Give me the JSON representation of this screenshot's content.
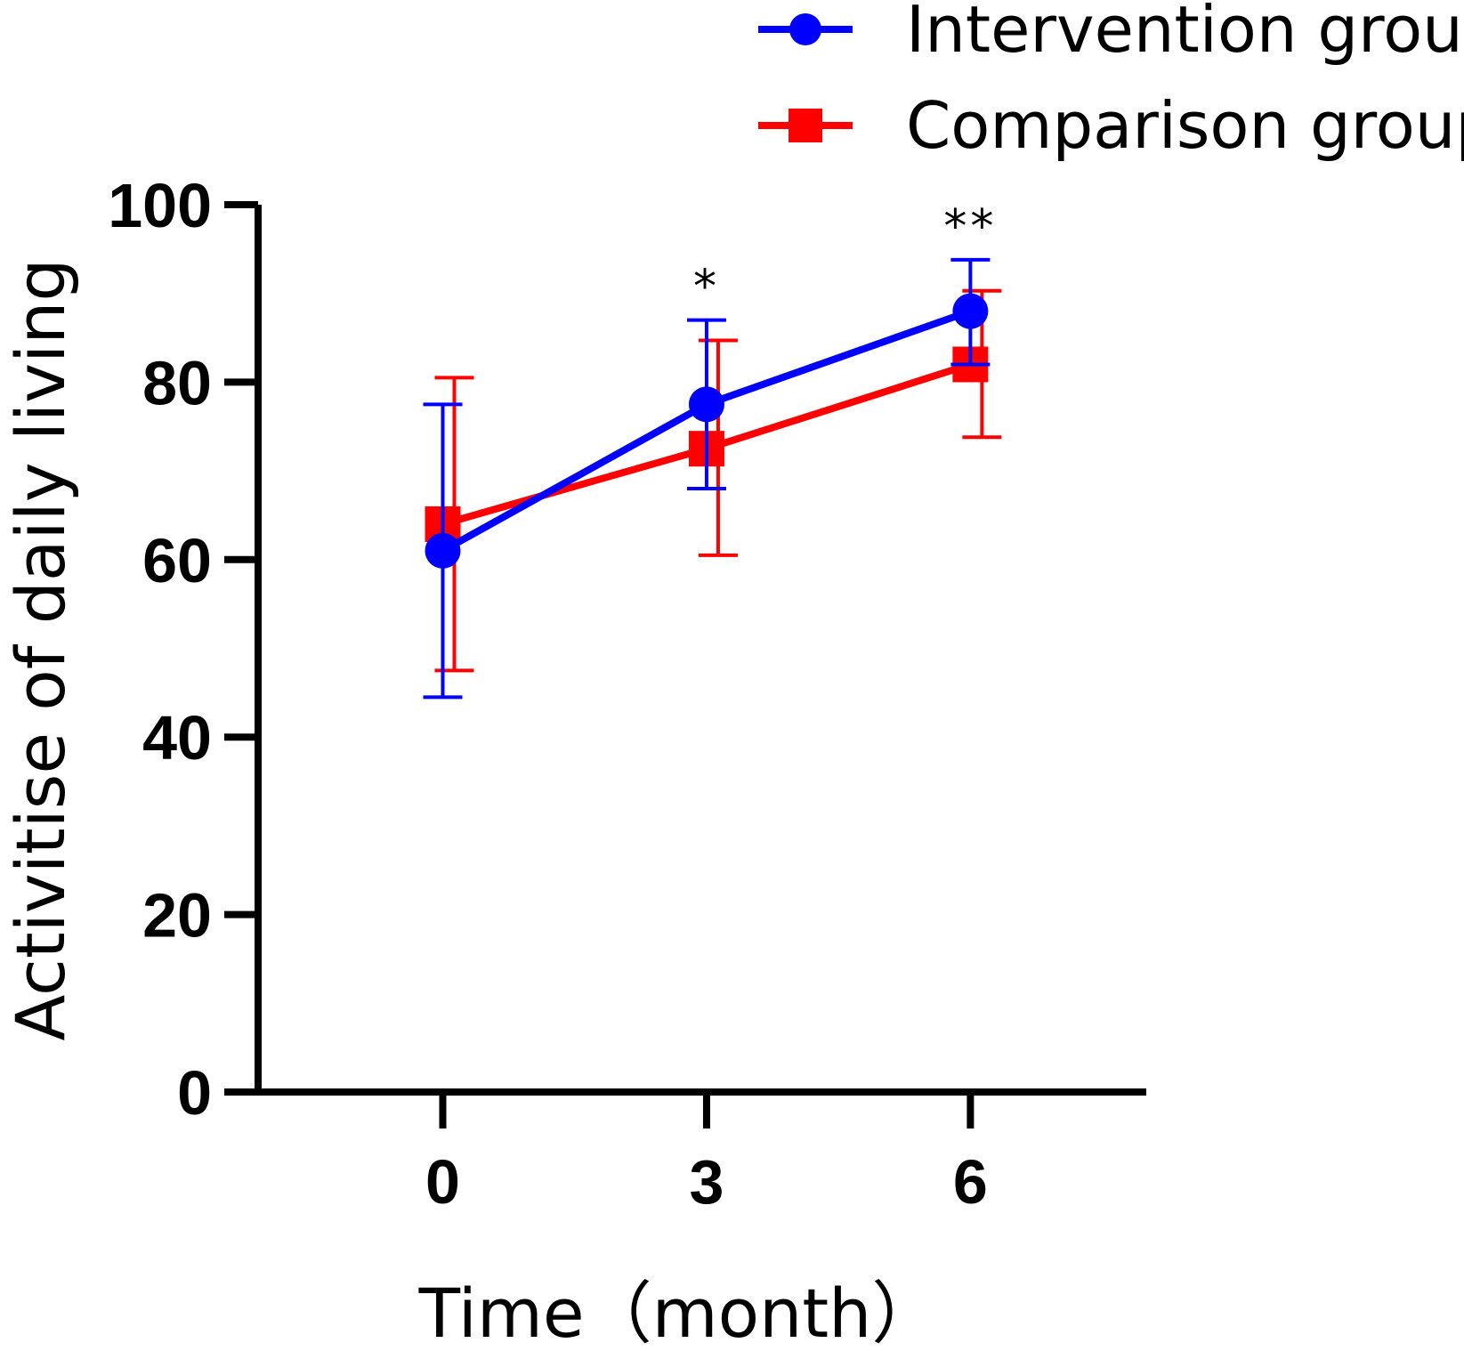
{
  "chart_data": {
    "type": "line",
    "title": "",
    "xlabel": "Time（month）",
    "ylabel": "Activitise of daily living",
    "x": [
      0,
      3,
      6
    ],
    "x_tick_labels": [
      "0",
      "3",
      "6"
    ],
    "xlim": [
      -2.1,
      8
    ],
    "ylim": [
      0,
      100
    ],
    "y_ticks": [
      0,
      20,
      40,
      60,
      80,
      100
    ],
    "y_tick_labels": [
      "0",
      "20",
      "40",
      "60",
      "80",
      "100"
    ],
    "grid": false,
    "legend_position": "top-right",
    "series": [
      {
        "name": "Intervention group",
        "color": "#0000FF",
        "marker": "circle",
        "values": [
          61.0,
          77.5,
          88.0
        ],
        "error_upper": [
          77.5,
          87.0,
          93.8
        ],
        "error_lower": [
          44.5,
          68.0,
          82.0
        ]
      },
      {
        "name": "Comparison group",
        "color": "#FF0000",
        "marker": "square",
        "values": [
          64.0,
          72.5,
          82.0
        ],
        "error_upper": [
          80.5,
          84.7,
          90.3
        ],
        "error_lower": [
          47.5,
          60.5,
          73.8
        ]
      }
    ],
    "annotations": [
      {
        "x": 3,
        "text": "*"
      },
      {
        "x": 6,
        "text": "**"
      }
    ]
  }
}
